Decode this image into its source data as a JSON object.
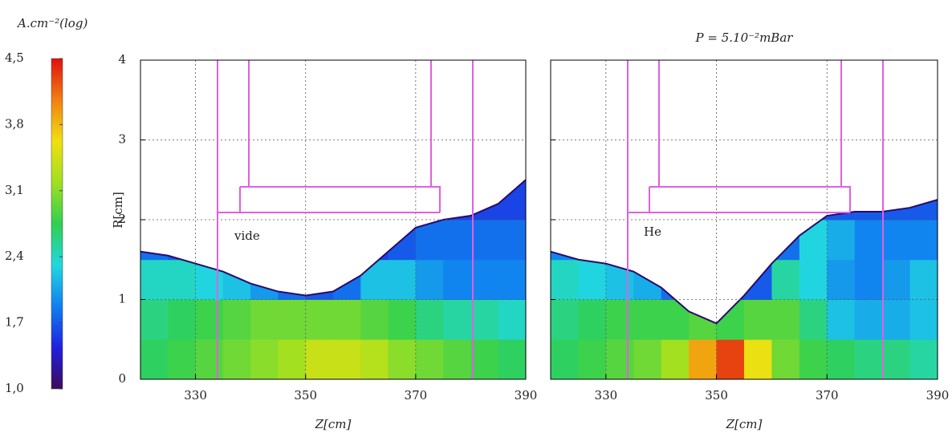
{
  "colorbar": {
    "title": "A.cm⁻²(log)",
    "clim": [
      1.0,
      4.5
    ],
    "colors": [
      "#3c0a5a",
      "#2020e0",
      "#1080f0",
      "#20d8e0",
      "#30d050",
      "#a0e020",
      "#f0e010",
      "#f08010",
      "#e01010"
    ],
    "ticks": [
      {
        "value": 1.0,
        "label": "1,0"
      },
      {
        "value": 1.7,
        "label": "1,7"
      },
      {
        "value": 2.4,
        "label": "2,4"
      },
      {
        "value": 3.1,
        "label": "3,1"
      },
      {
        "value": 3.8,
        "label": "3,8"
      },
      {
        "value": 4.5,
        "label": "4,5"
      }
    ]
  },
  "chart_data": [
    {
      "type": "heatmap",
      "xlabel": "Z[cm]",
      "ylabel": "R[cm]",
      "annotation": "vide",
      "xlim": [
        320,
        390
      ],
      "ylim": [
        0,
        4
      ],
      "xticks": [
        330,
        350,
        370,
        390
      ],
      "yticks": [
        0,
        1,
        2,
        3,
        4
      ],
      "show_yticklabels": true,
      "grid": true,
      "x_bins": [
        320,
        325,
        330,
        335,
        340,
        345,
        350,
        355,
        360,
        365,
        370,
        375,
        380,
        385,
        390
      ],
      "y_bins": [
        0,
        0.5,
        1,
        1.5,
        2,
        2.5
      ],
      "z": [
        [
          2.7,
          2.8,
          2.9,
          3.0,
          3.1,
          3.2,
          3.4,
          3.4,
          3.3,
          3.1,
          3.0,
          2.9,
          2.8,
          2.7
        ],
        [
          2.6,
          2.7,
          2.8,
          2.9,
          3.0,
          3.0,
          3.0,
          3.0,
          2.9,
          2.8,
          2.6,
          2.5,
          2.5,
          2.4
        ],
        [
          2.4,
          2.4,
          2.3,
          2.2,
          2.0,
          1.8,
          1.7,
          1.8,
          2.2,
          2.2,
          2.0,
          1.9,
          1.9,
          1.9
        ],
        [
          1.8,
          1.7,
          1.6,
          1.5,
          1.5,
          1.5,
          1.5,
          1.5,
          1.6,
          1.7,
          1.8,
          1.8,
          1.8,
          1.8
        ],
        [
          1.6,
          1.6,
          1.6,
          1.6,
          1.6,
          1.6,
          1.6,
          1.6,
          1.6,
          1.6,
          1.6,
          1.6,
          1.6,
          1.6
        ]
      ],
      "boundary_x": [
        320,
        325,
        330,
        335,
        340,
        345,
        350,
        355,
        360,
        365,
        370,
        375,
        380,
        385,
        390
      ],
      "boundary": [
        1.6,
        1.55,
        1.45,
        1.35,
        1.2,
        1.1,
        1.05,
        1.1,
        1.3,
        1.6,
        1.9,
        2.0,
        2.05,
        2.2,
        2.5
      ]
    },
    {
      "type": "heatmap",
      "title": "P = 5.10⁻²mBar",
      "xlabel": "Z[cm]",
      "annotation": "He",
      "xlim": [
        320,
        390
      ],
      "ylim": [
        0,
        4
      ],
      "xticks": [
        330,
        350,
        370,
        390
      ],
      "yticks": [
        0,
        1,
        2,
        3,
        4
      ],
      "show_yticklabels": false,
      "grid": true,
      "x_bins": [
        320,
        325,
        330,
        335,
        340,
        345,
        350,
        355,
        360,
        365,
        370,
        375,
        380,
        385,
        390
      ],
      "y_bins": [
        0,
        0.5,
        1,
        1.5,
        2,
        2.5
      ],
      "z": [
        [
          2.7,
          2.8,
          2.9,
          3.0,
          3.2,
          3.9,
          4.3,
          3.6,
          3.0,
          2.8,
          2.7,
          2.6,
          2.6,
          2.5
        ],
        [
          2.6,
          2.7,
          2.8,
          2.8,
          2.8,
          2.9,
          2.8,
          2.9,
          2.9,
          2.6,
          2.2,
          2.1,
          2.1,
          2.2
        ],
        [
          2.4,
          2.3,
          2.2,
          2.1,
          1.8,
          1.6,
          1.6,
          1.7,
          2.5,
          2.3,
          2.0,
          1.9,
          2.0,
          2.2
        ],
        [
          1.9,
          1.8,
          1.7,
          1.6,
          1.6,
          1.6,
          1.6,
          1.6,
          1.8,
          2.3,
          2.1,
          1.9,
          1.9,
          1.9
        ],
        [
          1.7,
          1.7,
          1.7,
          1.7,
          1.7,
          1.7,
          1.7,
          1.7,
          1.7,
          1.7,
          1.7,
          1.7,
          1.7,
          1.7
        ]
      ],
      "boundary_x": [
        320,
        325,
        330,
        335,
        340,
        345,
        350,
        355,
        360,
        365,
        370,
        375,
        380,
        385,
        390
      ],
      "boundary": [
        1.6,
        1.5,
        1.45,
        1.35,
        1.15,
        0.85,
        0.7,
        1.05,
        1.45,
        1.8,
        2.05,
        2.1,
        2.1,
        2.15,
        2.25
      ]
    }
  ]
}
